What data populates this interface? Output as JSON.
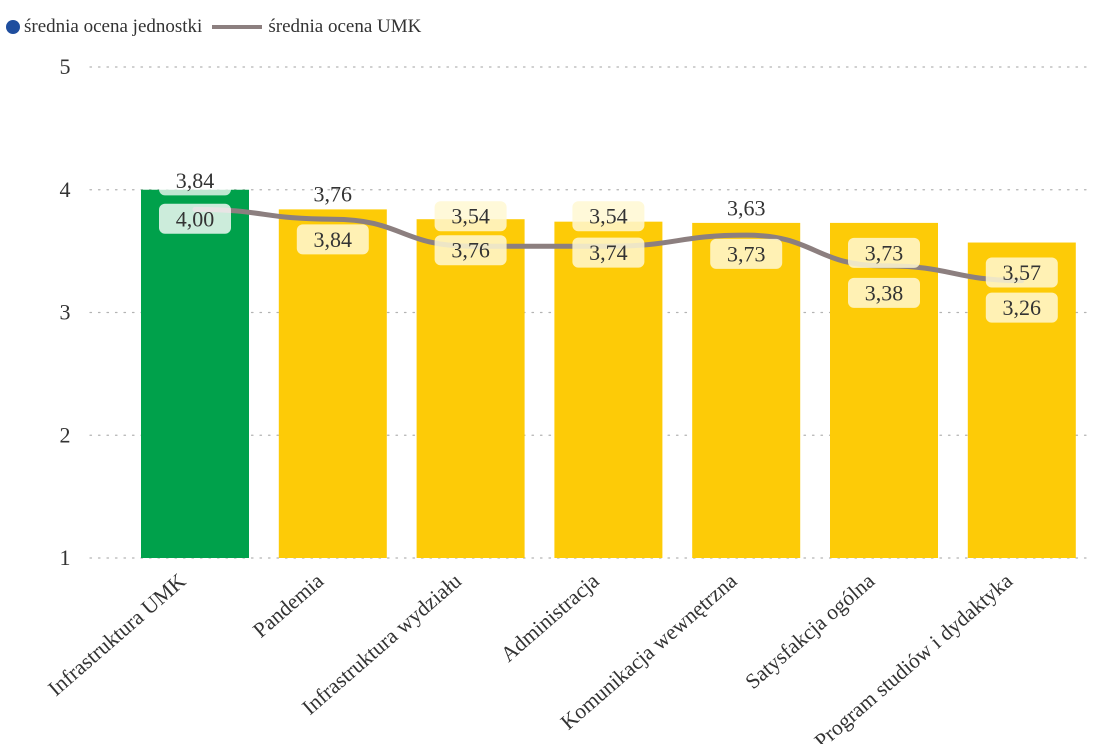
{
  "legend": {
    "unit_label": "średnia ocena jednostki",
    "umk_label": "średnia ocena UMK"
  },
  "colors": {
    "highlight_bar": "#00A14B",
    "bar": "#FDCB07",
    "line": "#8C7F7F",
    "unit_dot": "#1F4E9E",
    "grid": "#B3B3B3",
    "text": "#333333"
  },
  "chart_data": {
    "type": "bar",
    "title": "",
    "xlabel": "",
    "ylabel": "",
    "ylim": [
      1,
      5
    ],
    "y_ticks": [
      "1",
      "2",
      "3",
      "4",
      "5"
    ],
    "grid": true,
    "legend_position": "top-left",
    "categories": [
      "Infrastruktura UMK",
      "Pandemia",
      "Infrastruktura wydziału",
      "Administracja",
      "Komunikacja wewnętrzna",
      "Satysfakcja ogólna",
      "Program studiów i dydaktyka"
    ],
    "series": [
      {
        "name": "średnia ocena jednostki",
        "type": "bar",
        "values": [
          4.0,
          3.84,
          3.76,
          3.74,
          3.73,
          3.73,
          3.57
        ],
        "labels": [
          "4,00",
          "3,84",
          "3,76",
          "3,74",
          "3,73",
          "3,73",
          "3,57"
        ]
      },
      {
        "name": "średnia ocena UMK",
        "type": "line",
        "values": [
          3.84,
          3.76,
          3.54,
          3.54,
          3.63,
          3.38,
          3.26
        ],
        "labels": [
          "3,84",
          "3,76",
          "3,54",
          "3,54",
          "3,63",
          "3,38",
          "3,26"
        ]
      }
    ]
  }
}
